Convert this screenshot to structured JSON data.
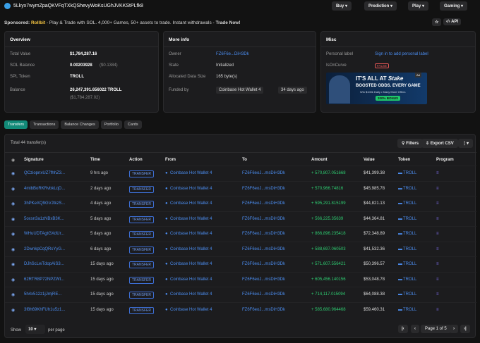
{
  "header": {
    "address": "5Lkyx7wymZpaQKVFqTXkQShevyWoKsUGhJVKKStPLfk8",
    "menus": [
      "Buy",
      "Prediction",
      "Play",
      "Gaming"
    ]
  },
  "sponsor": {
    "label": "Sponsored:",
    "brand": "Rollbit",
    "text": " - Play & Trade with SOL. 4,000+ Games, 50+ assets to trade. Instant withdrawals - ",
    "cta": "Trade Now!",
    "api": "API"
  },
  "overview": {
    "title": "Overview",
    "rows": [
      {
        "label": "Total Value",
        "value": "$1,784,287.16"
      },
      {
        "label": "SOL Balance",
        "value": "0.00203928",
        "sub": "($0.1384)"
      },
      {
        "label": "SPL Token",
        "value": "TROLL"
      },
      {
        "label": "Balance",
        "value": "26,247,391.656022 TROLL",
        "sub": "($1,784,287.02)"
      }
    ]
  },
  "more_info": {
    "title": "More info",
    "rows": [
      {
        "label": "Owner",
        "value": "FZ6F6e...DiH3Dk"
      },
      {
        "label": "State",
        "value": "Initialized"
      },
      {
        "label": "Allocated Data Size",
        "value": "165 byte(s)"
      },
      {
        "label": "Funded by",
        "value": "Coinbase Hot Wallet 4",
        "sub": "34 days ago"
      }
    ]
  },
  "misc": {
    "title": "Misc",
    "rows": [
      {
        "label": "Personal label",
        "value": "Sign in to add personal label"
      },
      {
        "label": "IsOnCurve",
        "value": "FALSE"
      }
    ],
    "ad": {
      "headline": "IT'S ALL AT",
      "brand": "Stake",
      "line1": "BOOSTED ODDS. EVERY GAME",
      "line2": "Win $100k Daily • Many More Offers",
      "bonus": "200% BONUS",
      "tag": "Ad"
    }
  },
  "tabs": [
    "Transfers",
    "Transactions",
    "Balance Changes",
    "Portfolio",
    "Cards"
  ],
  "table": {
    "total": "Total 44 transfer(s)",
    "filters": "Filters",
    "export": "Export CSV",
    "columns": [
      "Signature",
      "Time",
      "Action",
      "From",
      "To",
      "Amount",
      "Value",
      "Token",
      "Program"
    ],
    "rows": [
      [
        "QCziopnxUZ7fhhZ3...",
        "9 hrs ago",
        "TRANSFER",
        "Coinbase Hot Wallet 4",
        "FZ6F6eoJ...msDiH3Dk",
        "+ 570,807.051668",
        "$41,399.38",
        "TROLL"
      ],
      [
        "4mibBoRKRvbkLqD...",
        "2 days ago",
        "TRANSFER",
        "Coinbase Hot Wallet 4",
        "FZ6F6eoJ...msDiH3Dk",
        "+ 570,966.74816",
        "$45,985.78",
        "TROLL"
      ],
      [
        "3hPKeXQ9GVJtkzS...",
        "4 days ago",
        "TRANSFER",
        "Coinbase Hot Wallet 4",
        "FZ6F6eoJ...msDiH3Dk",
        "+ 595,291.815199",
        "$44,821.13",
        "TROLL"
      ],
      [
        "5oxsn3a1zNBxB3K...",
        "5 days ago",
        "TRANSFER",
        "Coinbase Hot Wallet 4",
        "FZ6F6eoJ...msDiH3Dk",
        "+ 566,225.35639",
        "$44,364.81",
        "TROLL"
      ],
      [
        "WHuUDTAgtGXdUr...",
        "5 days ago",
        "TRANSFER",
        "Coinbase Hot Wallet 4",
        "FZ6F6eoJ...msDiH3Dk",
        "+ 866,896.235418",
        "$72,348.89",
        "TROLL"
      ],
      [
        "2DwnkpCqQRsYyG...",
        "6 days ago",
        "TRANSFER",
        "Coinbase Hot Wallet 4",
        "FZ6F6eoJ...msDiH3Dk",
        "+ 588,697.060503",
        "$41,532.36",
        "TROLL"
      ],
      [
        "DJhScLwTdopAiS3...",
        "15 days ago",
        "TRANSFER",
        "Coinbase Hot Wallet 4",
        "FZ6F6eoJ...msDiH3Dk",
        "+ 571,607.556421",
        "$50,396.57",
        "TROLL"
      ],
      [
        "62RTR8P72NPZWt...",
        "15 days ago",
        "TRANSFER",
        "Coinbase Hot Wallet 4",
        "FZ6F6eoJ...msDiH3Dk",
        "+ 605,456.140156",
        "$53,048.78",
        "TROLL"
      ],
      [
        "5h4x512z1jJmjRE...",
        "15 days ago",
        "TRANSFER",
        "Coinbase Hot Wallet 4",
        "FZ6F6eoJ...msDiH3Dk",
        "+ 714,117.015094",
        "$64,088.38",
        "TROLL"
      ],
      [
        "3f8h69KhFUh1u5z1...",
        "15 days ago",
        "TRANSFER",
        "Coinbase Hot Wallet 4",
        "FZ6F6eoJ...msDiH3Dk",
        "+ 585,680.964468",
        "$59,460.31",
        "TROLL"
      ]
    ]
  },
  "pager": {
    "show": "Show",
    "size": "10",
    "per_page": "per page",
    "page": "Page 1 of 5"
  }
}
